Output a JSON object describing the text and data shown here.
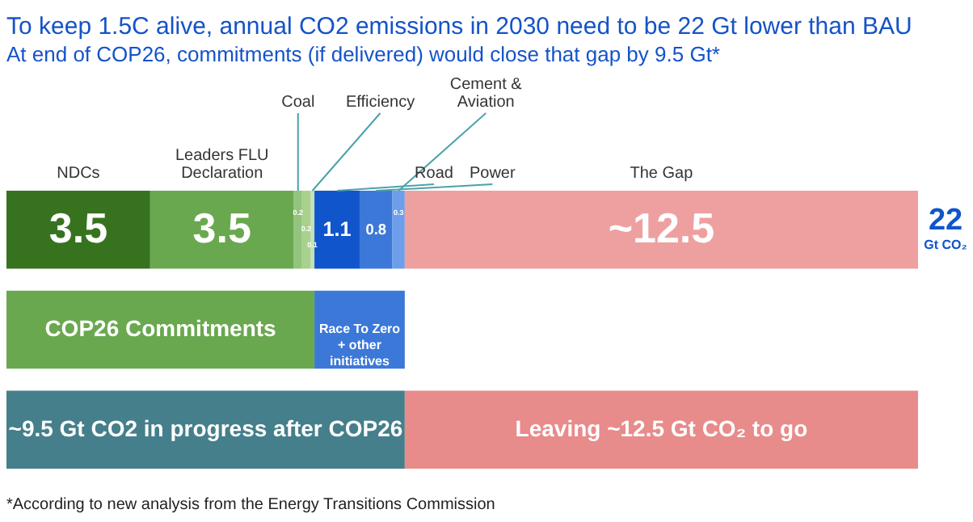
{
  "chart_data": {
    "type": "bar",
    "orientation": "horizontal",
    "stacked": true,
    "title": "To keep 1.5C alive, annual CO2 emissions in 2030 need to be 22 Gt lower than BAU",
    "subtitle": "At end of COP26, commitments (if delivered) would close that gap by 9.5 Gt*",
    "categories": [
      null,
      null,
      null
    ],
    "series": [
      {
        "name": "NDCs",
        "color": "#37731f",
        "values": [
          3.5,
          null,
          null
        ],
        "value_labels": [
          "3.5",
          null,
          null
        ]
      },
      {
        "name": "Leaders FLU Declaration",
        "color": "#6aa84f",
        "values": [
          3.5,
          null,
          null
        ],
        "value_labels": [
          "3.5",
          null,
          null
        ]
      },
      {
        "name": "Coal",
        "color": "#93c47d",
        "values": [
          0.2,
          null,
          null
        ],
        "value_labels": [
          "0.2",
          null,
          null
        ]
      },
      {
        "color": "#a9d18e",
        "values": [
          0.2,
          null,
          null
        ],
        "value_labels": [
          "0.2",
          null,
          null
        ]
      },
      {
        "name": "Efficiency",
        "color": "#c5e0b4",
        "values": [
          0.1,
          null,
          null
        ],
        "value_labels": [
          "0.1",
          null,
          null
        ]
      },
      {
        "name": "Road",
        "color": "#1155cc",
        "values": [
          1.1,
          null,
          null
        ],
        "value_labels": [
          "1.1",
          null,
          null
        ]
      },
      {
        "name": "Power",
        "color": "#3c78d8",
        "values": [
          0.8,
          null,
          null
        ],
        "value_labels": [
          "0.8",
          null,
          null
        ]
      },
      {
        "name": "Cement & Aviation",
        "color": "#6d9eeb",
        "values": [
          0.3,
          null,
          null
        ],
        "value_labels": [
          "0.3",
          null,
          null
        ]
      },
      {
        "name": "The Gap",
        "color": "#eea0a0",
        "values": [
          12.5,
          null,
          null
        ],
        "value_labels": [
          "~12.5",
          null,
          null
        ]
      },
      {
        "name": "COP26 Commitments",
        "color": "#6aa84f",
        "values": [
          null,
          7.5,
          null
        ]
      },
      {
        "name": "Race To Zero + other initiatives",
        "color": "#3c78d8",
        "values": [
          null,
          2.2,
          null
        ]
      },
      {
        "name": "~9.5 Gt CO2 in progress after COP26",
        "color": "#457f8b",
        "values": [
          null,
          null,
          9.7
        ]
      },
      {
        "name": "Leaving ~12.5 Gt CO₂ to go",
        "color": "#e88b8b",
        "values": [
          null,
          null,
          12.5
        ]
      }
    ],
    "totals": [
      "22 Gt CO₂",
      null,
      null
    ],
    "annotations": [
      "*According to new analysis from the Energy Transitions Commission"
    ]
  }
}
